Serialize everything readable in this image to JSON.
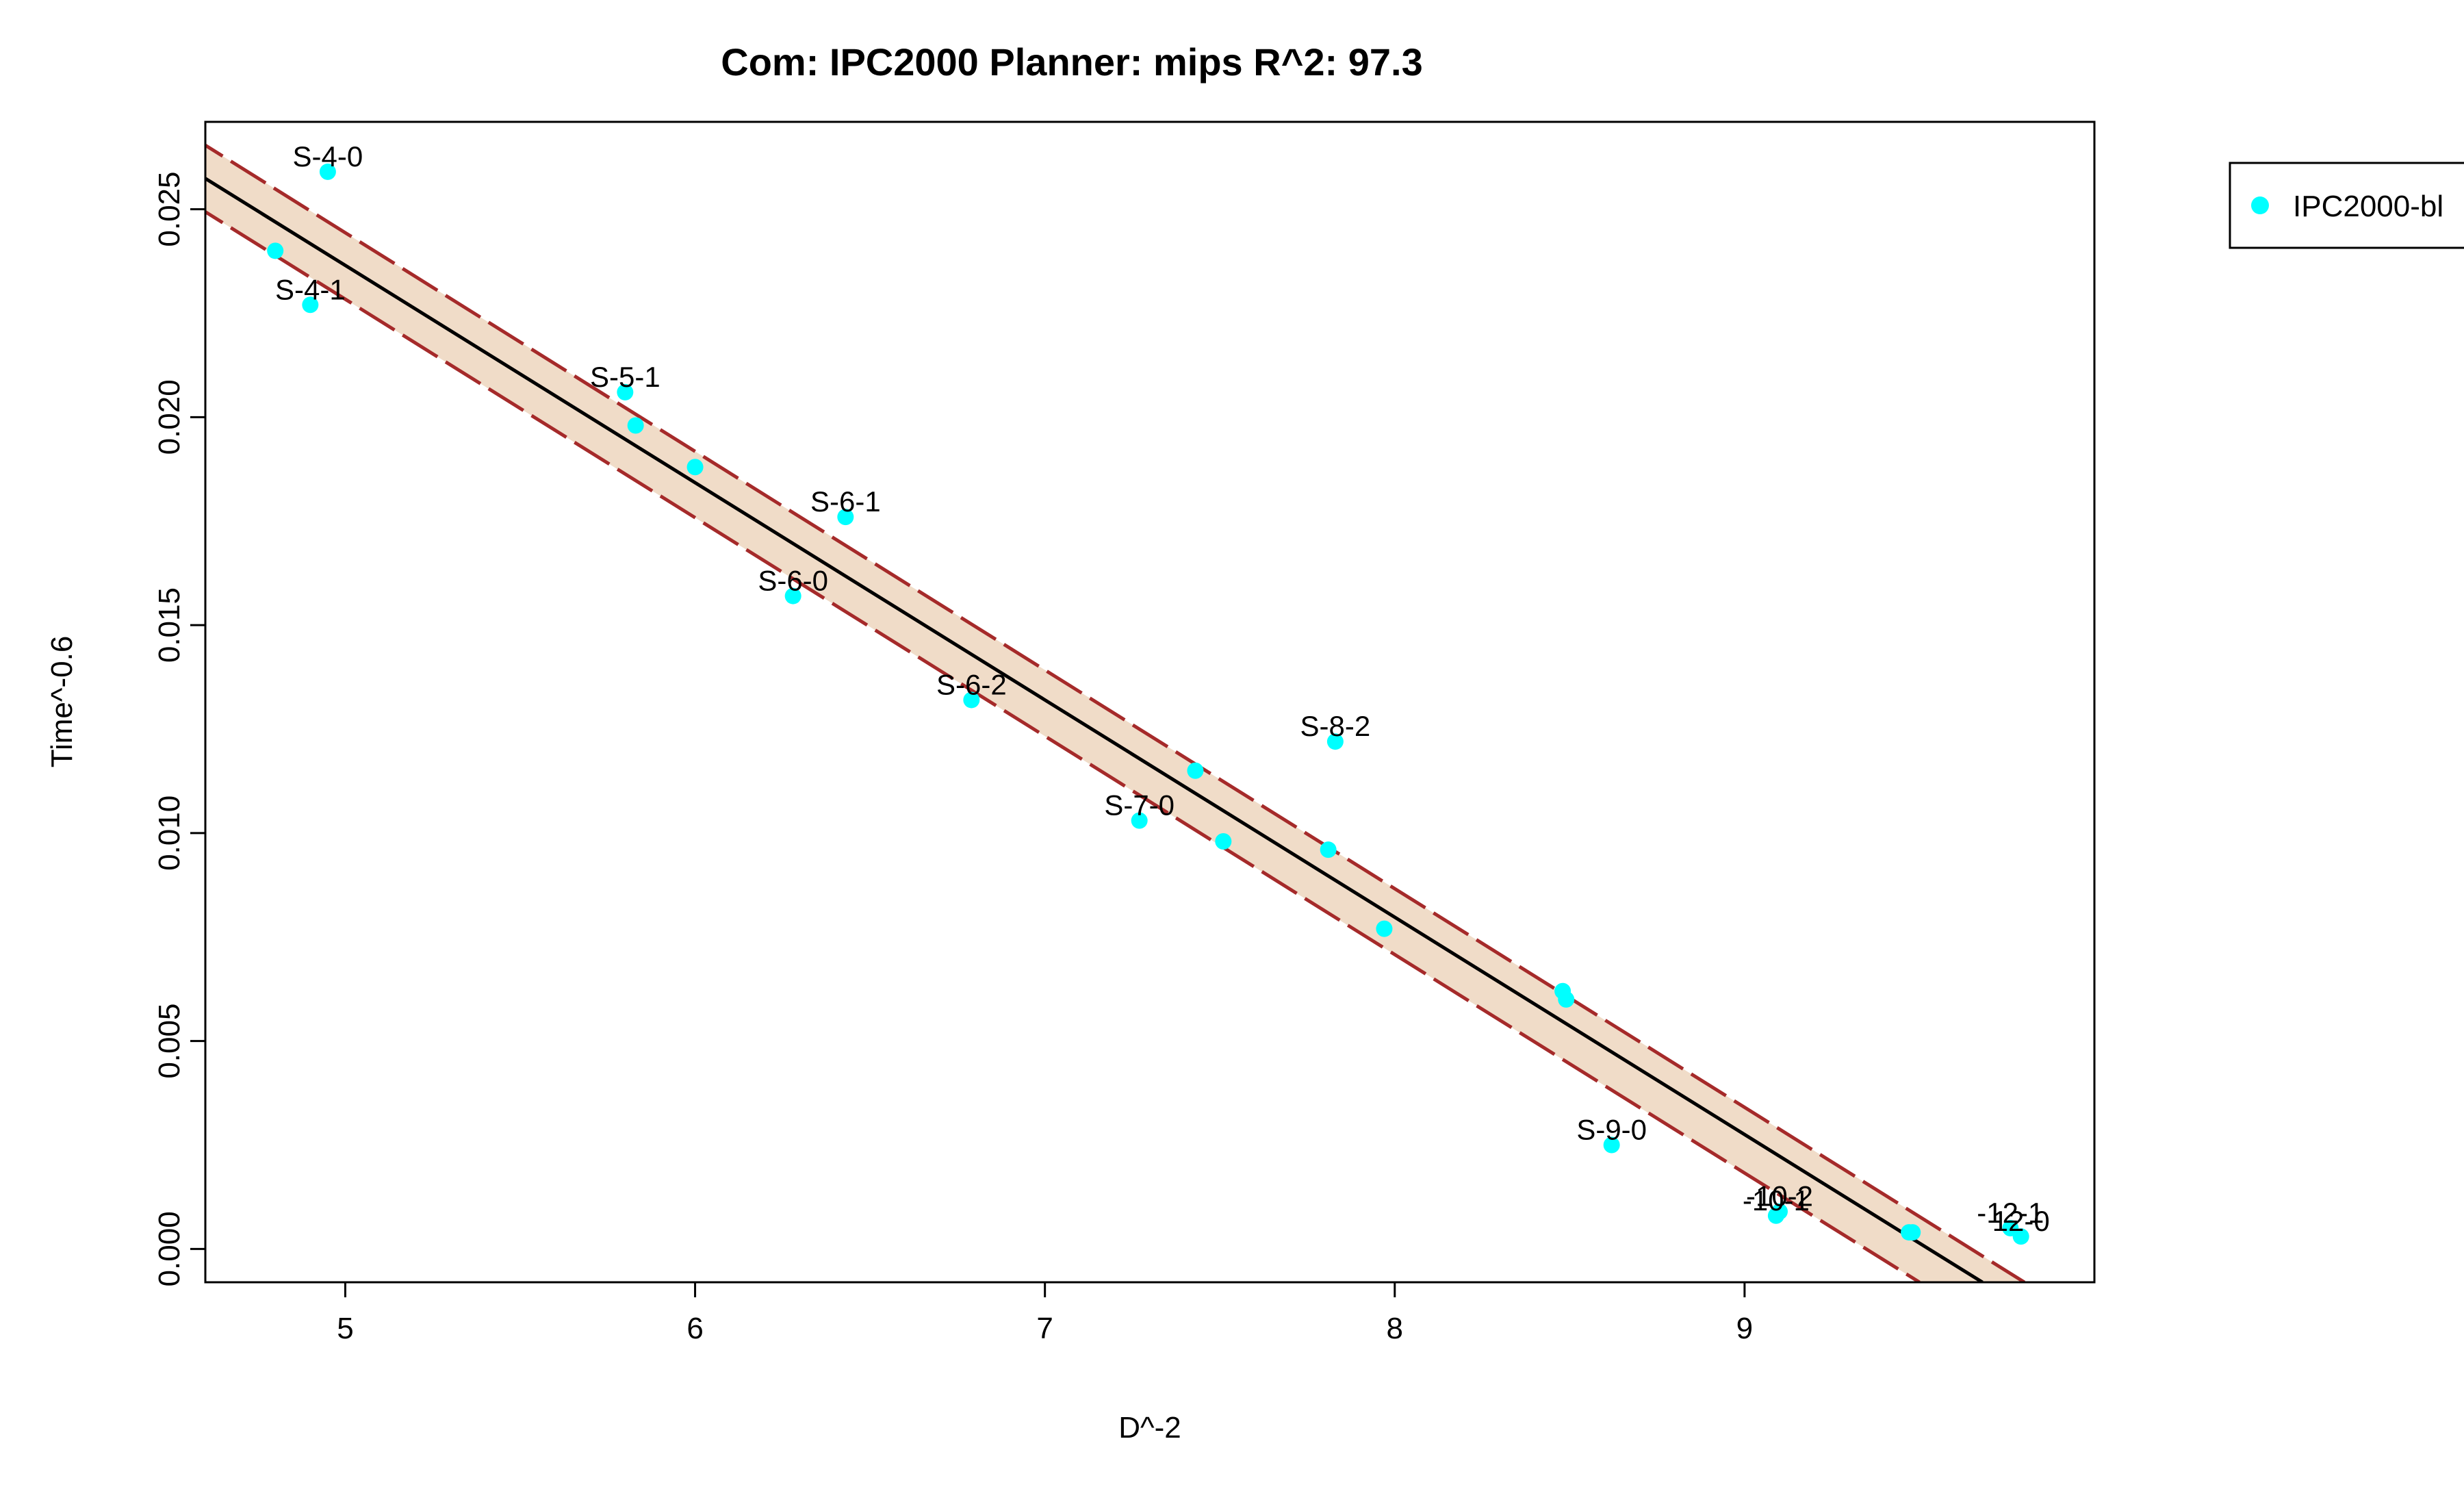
{
  "chart_data": {
    "type": "scatter",
    "title": "Com: IPC2000 Planner: mips R^2: 97.3",
    "xlabel": "D^-2",
    "ylabel": "Time^-0.6",
    "xlim": [
      4.6,
      10.0
    ],
    "ylim": [
      -0.0008,
      0.0271
    ],
    "x_ticks": [
      5,
      6,
      7,
      8,
      9
    ],
    "x_tick_labels": [
      "5",
      "6",
      "7",
      "8",
      "9"
    ],
    "y_ticks": [
      0.0,
      0.005,
      0.01,
      0.015,
      0.02,
      0.025
    ],
    "y_tick_labels": [
      "0.000",
      "0.005",
      "0.010",
      "0.015",
      "0.020",
      "0.025"
    ],
    "grid": false,
    "legend_position": "outside-top-right",
    "colors": {
      "points": "#00ffff",
      "fit_line": "#000000",
      "band_lines": "#a52a2a",
      "band_fill": "#f0dcc8"
    },
    "series": [
      {
        "name": "IPC2000-bl",
        "points": [
          {
            "x": 4.8,
            "y": 0.024,
            "label": ""
          },
          {
            "x": 4.9,
            "y": 0.0227,
            "label": "S-4-1"
          },
          {
            "x": 4.95,
            "y": 0.0259,
            "label": "S-4-0"
          },
          {
            "x": 5.8,
            "y": 0.0206,
            "label": "S-5-1"
          },
          {
            "x": 5.83,
            "y": 0.0198,
            "label": ""
          },
          {
            "x": 6.0,
            "y": 0.0188,
            "label": ""
          },
          {
            "x": 6.28,
            "y": 0.0157,
            "label": "S-6-0"
          },
          {
            "x": 6.43,
            "y": 0.0176,
            "label": "S-6-1"
          },
          {
            "x": 6.79,
            "y": 0.0132,
            "label": "S-6-2"
          },
          {
            "x": 7.27,
            "y": 0.0103,
            "label": "S-7-0"
          },
          {
            "x": 7.43,
            "y": 0.0115,
            "label": ""
          },
          {
            "x": 7.51,
            "y": 0.0098,
            "label": ""
          },
          {
            "x": 7.81,
            "y": 0.0096,
            "label": ""
          },
          {
            "x": 7.83,
            "y": 0.0122,
            "label": "S-8-2"
          },
          {
            "x": 7.97,
            "y": 0.0077,
            "label": ""
          },
          {
            "x": 8.48,
            "y": 0.0062,
            "label": ""
          },
          {
            "x": 8.49,
            "y": 0.006,
            "label": ""
          },
          {
            "x": 8.62,
            "y": 0.0025,
            "label": "S-9-0"
          },
          {
            "x": 9.09,
            "y": 0.0008,
            "label": "-10-1"
          },
          {
            "x": 9.1,
            "y": 0.0009,
            "label": "-10-2"
          },
          {
            "x": 9.47,
            "y": 0.0004,
            "label": ""
          },
          {
            "x": 9.48,
            "y": 0.0004,
            "label": ""
          },
          {
            "x": 9.76,
            "y": 0.0005,
            "label": "-12-1"
          },
          {
            "x": 9.79,
            "y": 0.0003,
            "label": "12-0"
          }
        ]
      }
    ],
    "fit_line": {
      "x": [
        4.55,
        9.68
      ],
      "y": [
        0.026,
        -0.0008
      ]
    },
    "band_upper": {
      "x": [
        4.55,
        9.8
      ],
      "y": [
        0.0268,
        -0.0008
      ]
    },
    "band_lower": {
      "x": [
        4.55,
        9.5
      ],
      "y": [
        0.0252,
        -0.0008
      ]
    }
  }
}
